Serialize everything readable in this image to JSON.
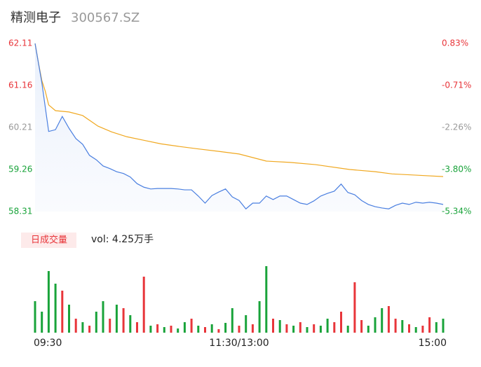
{
  "header": {
    "name": "精测电子",
    "code": "300567.SZ"
  },
  "chart_data": [
    {
      "type": "line",
      "x": [
        0,
        4,
        8,
        12,
        16,
        20,
        24,
        28,
        32,
        36,
        40,
        44,
        48,
        52,
        56,
        60,
        64,
        68,
        72,
        76,
        80,
        84,
        88,
        92,
        96,
        100,
        104,
        108,
        112,
        116,
        120,
        124,
        128,
        132,
        136,
        140,
        144,
        148,
        152,
        156,
        160,
        164,
        168,
        172,
        176,
        180,
        184,
        188,
        192,
        196,
        200,
        204,
        208,
        212,
        216,
        220,
        224,
        228,
        232,
        236,
        240
      ],
      "xlim": [
        0,
        240
      ],
      "xticks": [
        {
          "value": 0,
          "label": "09:30"
        },
        {
          "value": 120,
          "label": "11:30/13:00"
        },
        {
          "value": 240,
          "label": "15:00"
        }
      ],
      "series": [
        {
          "name": "price",
          "color": "#4a7fe0",
          "values": [
            62.11,
            61.22,
            60.12,
            60.16,
            60.46,
            60.19,
            59.96,
            59.83,
            59.58,
            59.48,
            59.34,
            59.28,
            59.21,
            59.17,
            59.09,
            58.94,
            58.86,
            58.82,
            58.83,
            58.83,
            58.83,
            58.82,
            58.8,
            58.8,
            58.66,
            58.5,
            58.67,
            58.75,
            58.82,
            58.64,
            58.56,
            58.37,
            58.5,
            58.5,
            58.66,
            58.58,
            58.66,
            58.66,
            58.58,
            58.5,
            58.47,
            58.55,
            58.66,
            58.72,
            58.77,
            58.93,
            58.74,
            58.69,
            58.56,
            58.47,
            58.42,
            58.39,
            58.37,
            58.45,
            58.5,
            58.47,
            58.52,
            58.5,
            58.52,
            58.5,
            58.47
          ]
        },
        {
          "name": "average",
          "color": "#f0a820",
          "x": [
            0,
            2,
            4,
            6,
            8,
            12,
            20,
            28,
            37,
            45,
            54,
            64,
            74,
            85,
            95,
            108,
            120,
            136,
            150,
            165,
            185,
            200,
            210,
            225,
            240
          ],
          "values": [
            62.11,
            61.67,
            61.27,
            61.03,
            60.72,
            60.59,
            60.56,
            60.48,
            60.24,
            60.11,
            60.0,
            59.92,
            59.84,
            59.78,
            59.73,
            59.67,
            59.61,
            59.45,
            59.42,
            59.37,
            59.26,
            59.21,
            59.16,
            59.13,
            59.1
          ]
        }
      ],
      "ylim": [
        58.31,
        62.11
      ],
      "yticks": [
        62.11,
        61.16,
        60.21,
        59.26,
        58.31
      ],
      "ytick_colors": [
        "#e8353a",
        "#e8353a",
        "#999999",
        "#19a33a",
        "#19a33a"
      ],
      "y2lim": [
        -5.34,
        0.83
      ],
      "y2ticks": [
        {
          "value": 0.83,
          "label": "0.83%"
        },
        {
          "value": -0.71,
          "label": "-0.71%"
        },
        {
          "value": -2.26,
          "label": "-2.26%"
        },
        {
          "value": -3.8,
          "label": "-3.80%"
        },
        {
          "value": -5.34,
          "label": "-5.34%"
        }
      ]
    },
    {
      "type": "bar",
      "title": "日成交量",
      "subtitle": "vol: 4.25万手",
      "ylim": [
        0,
        100
      ],
      "colors": {
        "up": "#e8353a",
        "down": "#19a33a"
      },
      "direction": [
        "down",
        "down",
        "down",
        "down",
        "up",
        "down",
        "up",
        "down",
        "up",
        "down",
        "down",
        "up",
        "down",
        "up",
        "down",
        "up",
        "up",
        "down",
        "up",
        "down",
        "up",
        "down",
        "down",
        "up",
        "down",
        "up",
        "down",
        "up",
        "down",
        "down",
        "up",
        "down",
        "up",
        "down",
        "down",
        "up",
        "down",
        "up",
        "down",
        "up",
        "down",
        "up",
        "down",
        "down",
        "up",
        "up",
        "down",
        "up",
        "up",
        "down",
        "down",
        "down",
        "up",
        "up",
        "down",
        "up",
        "down",
        "up",
        "up",
        "down",
        "down"
      ],
      "x": [
        0,
        4,
        8,
        12,
        16,
        20,
        24,
        28,
        32,
        36,
        40,
        44,
        48,
        52,
        56,
        60,
        64,
        68,
        72,
        76,
        80,
        84,
        88,
        92,
        96,
        100,
        104,
        108,
        112,
        116,
        120,
        124,
        128,
        132,
        136,
        140,
        144,
        148,
        152,
        156,
        160,
        164,
        168,
        172,
        176,
        180,
        184,
        188,
        192,
        196,
        200,
        204,
        208,
        212,
        216,
        220,
        224,
        228,
        232,
        236,
        240
      ],
      "values": [
        45,
        30,
        88,
        70,
        60,
        40,
        20,
        15,
        10,
        30,
        45,
        20,
        40,
        35,
        25,
        15,
        80,
        10,
        12,
        8,
        10,
        6,
        15,
        20,
        10,
        8,
        12,
        5,
        14,
        35,
        10,
        25,
        12,
        45,
        95,
        20,
        18,
        12,
        10,
        15,
        8,
        12,
        10,
        20,
        15,
        30,
        10,
        72,
        18,
        10,
        22,
        35,
        38,
        20,
        18,
        12,
        8,
        10,
        22,
        15,
        20
      ]
    }
  ]
}
